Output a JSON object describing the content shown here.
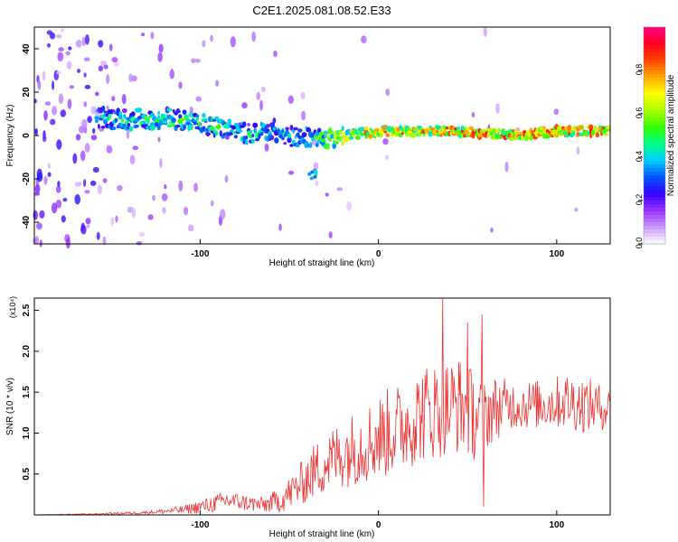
{
  "title": "C2E1.2025.081.08.52.E33",
  "chart_data": [
    {
      "type": "heatmap",
      "title": "C2E1.2025.081.08.52.E33",
      "xlabel": "Height of straight line (km)",
      "ylabel": "Frequency (Hz)",
      "xlim": [
        -193,
        130
      ],
      "ylim": [
        -50,
        50
      ],
      "x_ticks": [
        -100,
        0,
        100
      ],
      "y_ticks": [
        -40,
        -20,
        0,
        20,
        40
      ],
      "colorbar": {
        "label": "Normalized spectral amplitude",
        "range": [
          0,
          1
        ],
        "ticks": [
          "0.0",
          "0.2",
          "0.4",
          "0.6",
          "0.8"
        ],
        "colors": [
          "#ffffff",
          "#cc99ff",
          "#9933ff",
          "#3300ff",
          "#0055ff",
          "#00ccff",
          "#00ff88",
          "#33ff00",
          "#aaff00",
          "#ffff00",
          "#ffaa00",
          "#ff4400",
          "#ff0022",
          "#ff0088"
        ]
      },
      "ridge": {
        "x": [
          -155,
          -140,
          -120,
          -100,
          -90,
          -80,
          -70,
          -60,
          -50,
          -40,
          -30,
          -20,
          -10,
          0,
          20,
          40,
          60,
          80,
          100,
          130
        ],
        "freq": [
          8,
          7,
          8,
          6,
          4,
          2,
          0,
          3,
          0,
          -1,
          -2,
          0,
          1,
          2,
          2,
          2,
          1,
          0,
          2,
          2
        ],
        "amplitude": [
          0.45,
          0.5,
          0.55,
          0.55,
          0.5,
          0.45,
          0.5,
          0.45,
          0.45,
          0.5,
          0.6,
          0.7,
          0.75,
          0.8,
          0.8,
          0.85,
          0.85,
          0.9,
          0.85,
          0.85
        ]
      }
    },
    {
      "type": "line",
      "xlabel": "Height of straight line (km)",
      "ylabel": "SNR (10 * v/v)",
      "scale_label": "(x10⁴)",
      "xlim": [
        -193,
        130
      ],
      "ylim": [
        0,
        2.65
      ],
      "x_ticks": [
        -100,
        0,
        100
      ],
      "y_ticks": [
        "0.5",
        "1.0",
        "1.5",
        "2.0",
        "2.5"
      ],
      "color": "#ee3333",
      "envelope": {
        "x": [
          -193,
          -160,
          -130,
          -110,
          -95,
          -85,
          -75,
          -65,
          -55,
          -45,
          -35,
          -25,
          -15,
          -5,
          5,
          15,
          25,
          35,
          45,
          55,
          65,
          75,
          85,
          95,
          105,
          115,
          130
        ],
        "mean": [
          0.0,
          0.01,
          0.03,
          0.06,
          0.12,
          0.18,
          0.15,
          0.12,
          0.18,
          0.35,
          0.55,
          0.7,
          0.8,
          0.9,
          1.0,
          1.1,
          1.25,
          1.3,
          1.35,
          1.2,
          1.3,
          1.35,
          1.35,
          1.35,
          1.4,
          1.35,
          1.3
        ],
        "spread": [
          0.0,
          0.01,
          0.02,
          0.05,
          0.1,
          0.12,
          0.1,
          0.1,
          0.15,
          0.25,
          0.35,
          0.4,
          0.45,
          0.5,
          0.55,
          0.55,
          0.6,
          0.6,
          0.6,
          0.55,
          0.4,
          0.3,
          0.3,
          0.3,
          0.35,
          0.35,
          0.25
        ]
      },
      "peaks": [
        {
          "x": 36,
          "y": 2.65
        },
        {
          "x": 50,
          "y": 2.35
        },
        {
          "x": 58,
          "y": 2.45
        },
        {
          "x": 59,
          "y": 0.1
        }
      ]
    }
  ]
}
